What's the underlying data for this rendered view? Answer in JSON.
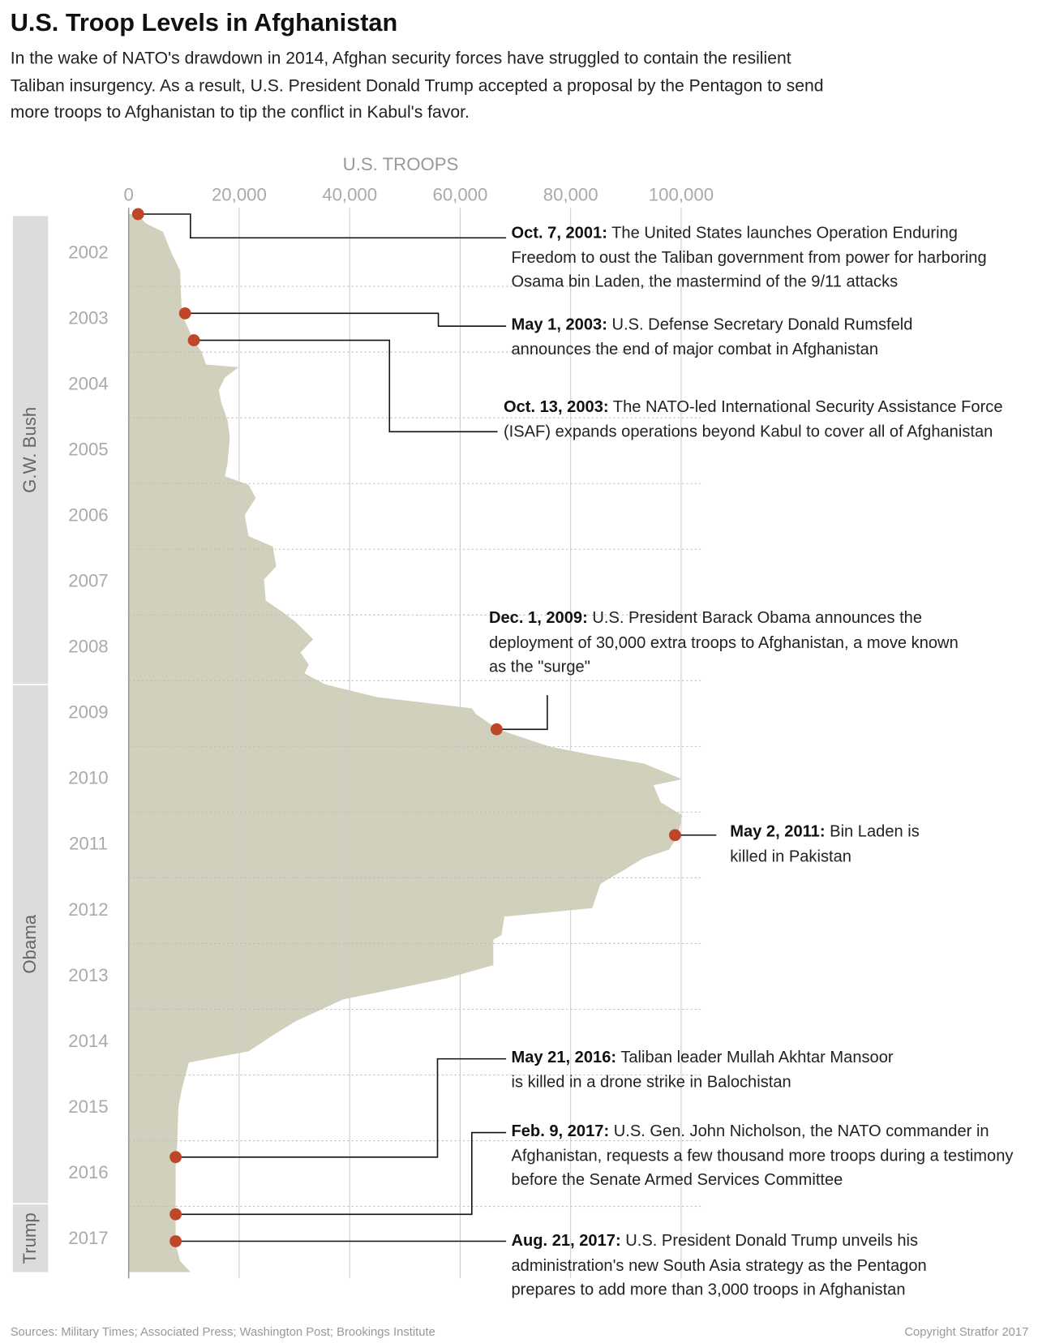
{
  "chart_data": {
    "type": "area",
    "title": "U.S. Troop Levels in Afghanistan",
    "subtitle": "In the wake of NATO's drawdown in 2014, Afghan security forces have struggled to contain the resilient Taliban insurgency. As a result, U.S. President Donald Trump accepted a proposal by the Pentagon to send more troops to Afghanistan to tip the conflict in Kabul's favor.",
    "value_axis_label": "U.S. TROOPS",
    "color": "#d0d0bd",
    "x": [
      2001.9,
      2002.04,
      2002.17,
      2002.5,
      2002.76,
      2003.41,
      2003.8,
      2004.0,
      2004.19,
      2004.23,
      2004.39,
      2004.58,
      2004.78,
      2005.04,
      2005.3,
      2005.69,
      2005.89,
      2006.02,
      2006.22,
      2006.48,
      2006.8,
      2006.96,
      2007.26,
      2007.46,
      2007.78,
      2007.94,
      2008.11,
      2008.37,
      2008.57,
      2008.76,
      2008.89,
      2009.06,
      2009.25,
      2009.42,
      2009.51,
      2009.74,
      2010.0,
      2010.13,
      2010.26,
      2010.5,
      2010.59,
      2010.85,
      2011.05,
      2011.37,
      2011.57,
      2011.7,
      2011.9,
      2012.09,
      2012.46,
      2012.59,
      2012.87,
      2012.94,
      2013.33,
      2013.53,
      2013.85,
      2014.18,
      2014.38,
      2014.64,
      2014.81,
      2015.22,
      2015.49,
      2016.01,
      2016.4,
      2017.12,
      2017.57,
      2017.83,
      2018.0
    ],
    "values": [
      1600,
      3100,
      6200,
      7800,
      9300,
      9600,
      11600,
      13200,
      14000,
      19900,
      17400,
      16300,
      16800,
      17900,
      18300,
      17900,
      17400,
      21700,
      23000,
      21000,
      21700,
      26100,
      26700,
      24500,
      24800,
      27600,
      30300,
      33400,
      31100,
      32600,
      31800,
      35700,
      45000,
      62100,
      62900,
      66800,
      76100,
      83900,
      93200,
      100200,
      95000,
      96300,
      100200,
      99400,
      97800,
      93200,
      89300,
      85400,
      83900,
      68000,
      67500,
      66000,
      66000,
      57500,
      38800,
      30300,
      26400,
      21700,
      10900,
      9600,
      9000,
      8800,
      8500,
      8500,
      8500,
      9300,
      11200
    ],
    "xlim": [
      2001.75,
      2018.0
    ],
    "xticks": [
      {
        "value": 2002.5,
        "label": "2002"
      },
      {
        "value": 2003.5,
        "label": "2003"
      },
      {
        "value": 2004.5,
        "label": "2004"
      },
      {
        "value": 2005.5,
        "label": "2005"
      },
      {
        "value": 2006.5,
        "label": "2006"
      },
      {
        "value": 2007.5,
        "label": "2007"
      },
      {
        "value": 2008.5,
        "label": "2008"
      },
      {
        "value": 2009.5,
        "label": "2009"
      },
      {
        "value": 2010.5,
        "label": "2010"
      },
      {
        "value": 2011.5,
        "label": "2011"
      },
      {
        "value": 2012.5,
        "label": "2012"
      },
      {
        "value": 2013.5,
        "label": "2013"
      },
      {
        "value": 2014.5,
        "label": "2014"
      },
      {
        "value": 2015.5,
        "label": "2015"
      },
      {
        "value": 2016.5,
        "label": "2016"
      },
      {
        "value": 2017.5,
        "label": "2017"
      }
    ],
    "xgrid": [
      2003,
      2004,
      2005,
      2006,
      2007,
      2008,
      2009,
      2010,
      2011,
      2012,
      2013,
      2014,
      2015,
      2016,
      2017
    ],
    "ylim": [
      0,
      100000
    ],
    "yticks": [
      0,
      {
        "value": 20000,
        "label": "20,000"
      },
      {
        "value": 40000,
        "label": "40,000"
      },
      {
        "value": 60000,
        "label": "60,000"
      },
      {
        "value": 80000,
        "label": "80,000"
      },
      {
        "value": 100000,
        "label": "100,000"
      }
    ],
    "grid": true,
    "periods": [
      {
        "label": "G.W. Bush",
        "start": 2001.93,
        "end": 2009.05
      },
      {
        "label": "Obama",
        "start": 2009.07,
        "end": 2016.95
      },
      {
        "label": "Trump",
        "start": 2016.97,
        "end": 2018.0
      }
    ],
    "events": [
      {
        "date": "Oct. 7, 2001:",
        "text": "The United States launches Operation Enduring Freedom to oust the Taliban government from power for harboring Osama bin Laden, the mastermind of the 9/11 attacks",
        "x": 2001.9,
        "value": 1700
      },
      {
        "date": "May 1, 2003:",
        "text": "U.S. Defense Secretary Donald Rumsfeld announces the end of major combat in Afghanistan",
        "x": 2003.41,
        "value": 10200
      },
      {
        "date": "Oct. 13, 2003:",
        "text": "The NATO-led International Security Assistance Force (ISAF) expands operations beyond Kabul to cover all of Afghanistan",
        "x": 2003.82,
        "value": 11800
      },
      {
        "date": "Dec. 1, 2009:",
        "text": "U.S. President Barack Obama announces the deployment of 30,000 extra troops to Afghanistan, a move known as the \"surge\"",
        "x": 2009.74,
        "value": 66600
      },
      {
        "date": "May 2, 2011:",
        "text": "Bin Laden is killed in Pakistan",
        "x": 2011.35,
        "value": 98900
      },
      {
        "date": "May 21, 2016:",
        "text": "Taliban leader Mullah Akhtar Mansoor is killed in a drone strike in Balochistan",
        "x": 2016.25,
        "value": 8500
      },
      {
        "date": "Feb. 9, 2017:",
        "text": "U.S. Gen. John Nicholson, the NATO commander in Afghanistan, requests a few thousand more troops during a testimony before the Senate Armed Services Committee",
        "x": 2017.12,
        "value": 8500
      },
      {
        "date": "Aug. 21, 2017:",
        "text": "U.S. President Donald Trump unveils his administration's new South Asia strategy as the Pentagon prepares to add more than 3,000 troops in Afghanistan",
        "x": 2017.53,
        "value": 8500
      }
    ],
    "source": "Sources: Military Times; Associated Press; Washington Post; Brookings Institute",
    "copyright": "Copyright Stratfor 2017"
  }
}
